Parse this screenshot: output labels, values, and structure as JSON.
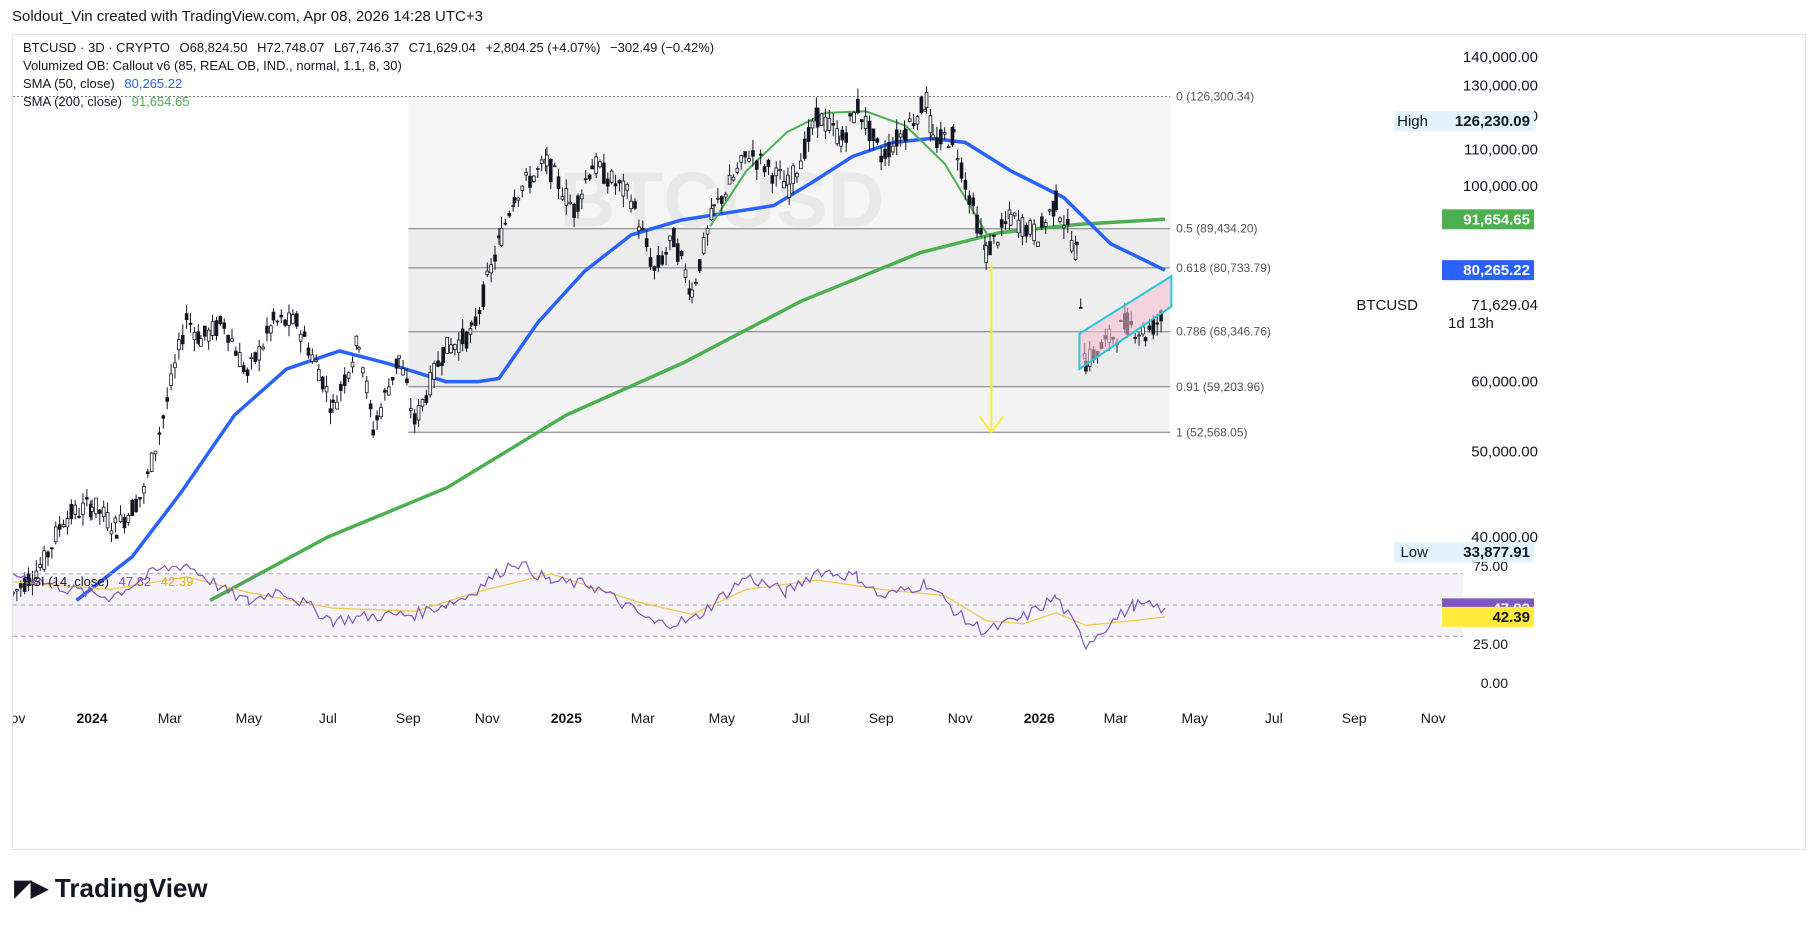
{
  "credit": "Soldout_Vin created with TradingView.com, Apr 08, 2026 14:28 UTC+3",
  "brand": {
    "name": "TradingView",
    "logo_icon": "tradingview-logo-icon"
  },
  "colors": {
    "candle": "#131722",
    "sma50": "#2962ff",
    "sma200": "#4caf50",
    "green_arc": "#4caf50",
    "rsi": "#7e57c2",
    "rsi_ma": "#f2c94c",
    "fib_line": "#787b86",
    "arrow": "#ffeb3b",
    "channel": "#26c6da",
    "channel_fill": "#f8bbd0",
    "badge_high_bg": "#e3f2fd",
    "badge_sma50_bg": "#2962ff",
    "badge_sma200_bg": "#4caf50",
    "badge_rsi_bg": "#7e57c2",
    "badge_rsi_ma_bg": "#ffeb3b"
  },
  "chart_data": {
    "type": "line",
    "symbol": "BTCUSD",
    "timeframe": "3D",
    "market": "CRYPTO",
    "watermark": "BTCUSD",
    "legend": {
      "header": "BTCUSD · 3D · CRYPTO",
      "ohlc": [
        "O68,824.50",
        "H72,748.07",
        "L67,746.37",
        "C71,629.04"
      ],
      "change": "+2,804.25 (+4.07%)",
      "change2": "−302.49 (−0.42%)",
      "ob_indicator": "Volumized OB: Callout v6 (85, REAL OB, IND., normal, 1.1, 8, 30)",
      "sma50_label": "SMA (50, close)",
      "sma50_value": "80,265.22",
      "sma200_label": "SMA (200, close)",
      "sma200_value": "91,654.65"
    },
    "price_axis": {
      "ticks": [
        "140,000.00",
        "130,000.00",
        "120,000.00",
        "110,000.00",
        "100,000.00",
        "60,000.00",
        "50,000.00",
        "40,000.00"
      ],
      "tick_values": [
        140000,
        130000,
        120000,
        110000,
        100000,
        60000,
        50000,
        40000
      ]
    },
    "time_axis": {
      "labels": [
        "Nov",
        "2024",
        "Mar",
        "May",
        "Jul",
        "Sep",
        "Nov",
        "2025",
        "Mar",
        "May",
        "Jul",
        "Sep",
        "Nov",
        "2026",
        "Mar",
        "May",
        "Jul",
        "Sep",
        "Nov"
      ],
      "bold": [
        false,
        true,
        false,
        false,
        false,
        false,
        false,
        true,
        false,
        false,
        false,
        false,
        false,
        true,
        false,
        false,
        false,
        false,
        false
      ],
      "dates": [
        "2023-11-01",
        "2024-01-01",
        "2024-03-01",
        "2024-05-01",
        "2024-07-01",
        "2024-09-01",
        "2024-11-01",
        "2025-01-01",
        "2025-03-01",
        "2025-05-01",
        "2025-07-01",
        "2025-09-01",
        "2025-11-01",
        "2026-01-01",
        "2026-03-01",
        "2026-05-01",
        "2026-07-01",
        "2026-09-01",
        "2026-11-01"
      ]
    },
    "x_range": [
      "2023-11-01",
      "2026-11-24"
    ],
    "y_log": true,
    "badges": {
      "high_label": "High",
      "high_value": "126,230.09",
      "low_label": "Low",
      "low_value": "33,877.91",
      "sma200_value": "91,654.65",
      "sma50_value": "80,265.22",
      "last_symbol": "BTCUSD",
      "last_value": "71,629.04",
      "countdown": "1d 13h"
    },
    "fibonacci": {
      "start": "2024-09-01",
      "end": "2026-04-12",
      "levels": [
        {
          "label": "0 (126,300.34)",
          "price": 126300.34
        },
        {
          "label": "0.5 (89,434.20)",
          "price": 89434.2
        },
        {
          "label": "0.618 (80,733.79)",
          "price": 80733.79
        },
        {
          "label": "0.786 (68,346.76)",
          "price": 68346.76
        },
        {
          "label": "0.91 (59,203.96)",
          "price": 59203.96
        },
        {
          "label": "1 (52,568.05)",
          "price": 52568.05
        }
      ]
    },
    "series": [
      {
        "name": "BTCUSD",
        "points": [
          [
            "2023-11-01",
            34500
          ],
          [
            "2023-11-25",
            37500
          ],
          [
            "2023-12-10",
            42000
          ],
          [
            "2024-01-01",
            43500
          ],
          [
            "2024-01-20",
            41000
          ],
          [
            "2024-02-10",
            45000
          ],
          [
            "2024-02-28",
            57000
          ],
          [
            "2024-03-14",
            71000
          ],
          [
            "2024-03-25",
            67000
          ],
          [
            "2024-04-12",
            70000
          ],
          [
            "2024-04-30",
            61000
          ],
          [
            "2024-05-20",
            70000
          ],
          [
            "2024-06-07",
            70000
          ],
          [
            "2024-06-24",
            62000
          ],
          [
            "2024-07-05",
            56000
          ],
          [
            "2024-07-25",
            67000
          ],
          [
            "2024-08-05",
            53000
          ],
          [
            "2024-08-25",
            64000
          ],
          [
            "2024-09-06",
            54000
          ],
          [
            "2024-09-28",
            65000
          ],
          [
            "2024-10-20",
            68000
          ],
          [
            "2024-11-12",
            88000
          ],
          [
            "2024-11-22",
            98000
          ],
          [
            "2024-12-17",
            106000
          ],
          [
            "2025-01-07",
            94000
          ],
          [
            "2025-01-21",
            106000
          ],
          [
            "2025-02-20",
            97000
          ],
          [
            "2025-03-10",
            80000
          ],
          [
            "2025-03-25",
            87000
          ],
          [
            "2025-04-08",
            76000
          ],
          [
            "2025-04-25",
            94000
          ],
          [
            "2025-05-22",
            109000
          ],
          [
            "2025-06-22",
            100000
          ],
          [
            "2025-07-14",
            120000
          ],
          [
            "2025-08-02",
            113000
          ],
          [
            "2025-08-14",
            123000
          ],
          [
            "2025-09-01",
            108000
          ],
          [
            "2025-09-20",
            116000
          ],
          [
            "2025-10-06",
            125000
          ],
          [
            "2025-10-11",
            112000
          ],
          [
            "2025-10-27",
            114000
          ],
          [
            "2025-11-05",
            101000
          ],
          [
            "2025-11-21",
            84000
          ],
          [
            "2025-12-10",
            92000
          ],
          [
            "2025-12-31",
            88000
          ],
          [
            "2026-01-14",
            96000
          ],
          [
            "2026-01-30",
            84000
          ],
          [
            "2026-02-06",
            63000
          ],
          [
            "2026-02-24",
            67000
          ],
          [
            "2026-03-10",
            70000
          ],
          [
            "2026-03-24",
            68000
          ],
          [
            "2026-04-08",
            71629.04
          ]
        ]
      },
      {
        "name": "SMA (50, close)",
        "points": [
          [
            "2023-12-20",
            33900
          ],
          [
            "2024-02-01",
            38000
          ],
          [
            "2024-03-10",
            45000
          ],
          [
            "2024-04-20",
            55000
          ],
          [
            "2024-05-30",
            62000
          ],
          [
            "2024-07-10",
            65000
          ],
          [
            "2024-08-15",
            63000
          ],
          [
            "2024-09-30",
            60000
          ],
          [
            "2024-10-25",
            60000
          ],
          [
            "2024-11-10",
            60500
          ],
          [
            "2024-12-10",
            70000
          ],
          [
            "2025-01-15",
            80000
          ],
          [
            "2025-02-20",
            88000
          ],
          [
            "2025-03-31",
            91500
          ],
          [
            "2025-05-01",
            93000
          ],
          [
            "2025-06-10",
            95000
          ],
          [
            "2025-07-10",
            101000
          ],
          [
            "2025-08-10",
            108000
          ],
          [
            "2025-09-10",
            112000
          ],
          [
            "2025-10-10",
            113200
          ],
          [
            "2025-11-05",
            112000
          ],
          [
            "2025-12-10",
            104000
          ],
          [
            "2026-01-20",
            97000
          ],
          [
            "2026-02-25",
            86000
          ],
          [
            "2026-04-08",
            80265.22
          ]
        ]
      },
      {
        "name": "SMA (200, close)",
        "points": [
          [
            "2024-04-01",
            33900
          ],
          [
            "2024-07-01",
            40000
          ],
          [
            "2024-10-01",
            45500
          ],
          [
            "2025-01-01",
            55000
          ],
          [
            "2025-04-01",
            63000
          ],
          [
            "2025-07-01",
            74000
          ],
          [
            "2025-10-01",
            84000
          ],
          [
            "2025-12-01",
            88500
          ],
          [
            "2026-02-01",
            90500
          ],
          [
            "2026-04-08",
            91654.65
          ]
        ]
      }
    ],
    "annotations": {
      "arc_points": [
        [
          "2025-04-22",
          90000
        ],
        [
          "2025-05-20",
          104000
        ],
        [
          "2025-06-20",
          115000
        ],
        [
          "2025-07-20",
          121000
        ],
        [
          "2025-08-20",
          121500
        ],
        [
          "2025-09-20",
          117000
        ],
        [
          "2025-10-20",
          106000
        ],
        [
          "2025-11-22",
          88000
        ]
      ],
      "arrow": {
        "date": "2025-11-25",
        "from": 82000,
        "to": 52568.05
      },
      "channel": [
        [
          "2026-02-01",
          68000
        ],
        [
          "2026-04-13",
          79000
        ],
        [
          "2026-04-13",
          73000
        ],
        [
          "2026-02-01",
          62000
        ]
      ]
    },
    "rsi": {
      "label": "RSI (14, close)",
      "value": "47.82",
      "ma_value": "42.39",
      "ticks": [
        "75.00",
        "25.00",
        "0.00"
      ],
      "tick_values": [
        75,
        25,
        0
      ],
      "bands": [
        70,
        50,
        30
      ],
      "points": [
        [
          "2023-11-01",
          70
        ],
        [
          "2023-12-15",
          60
        ],
        [
          "2024-01-15",
          55
        ],
        [
          "2024-02-20",
          72
        ],
        [
          "2024-03-14",
          76
        ],
        [
          "2024-04-15",
          58
        ],
        [
          "2024-05-01",
          52
        ],
        [
          "2024-05-25",
          60
        ],
        [
          "2024-07-05",
          40
        ],
        [
          "2024-08-05",
          43
        ],
        [
          "2024-09-06",
          44
        ],
        [
          "2024-10-15",
          55
        ],
        [
          "2024-11-22",
          78
        ],
        [
          "2024-12-20",
          65
        ],
        [
          "2025-01-20",
          63
        ],
        [
          "2025-02-25",
          45
        ],
        [
          "2025-03-10",
          38
        ],
        [
          "2025-04-08",
          40
        ],
        [
          "2025-05-20",
          68
        ],
        [
          "2025-06-20",
          58
        ],
        [
          "2025-07-14",
          72
        ],
        [
          "2025-08-14",
          68
        ],
        [
          "2025-09-01",
          55
        ],
        [
          "2025-10-06",
          64
        ],
        [
          "2025-11-05",
          40
        ],
        [
          "2025-11-21",
          33
        ],
        [
          "2025-12-20",
          42
        ],
        [
          "2026-01-14",
          55
        ],
        [
          "2026-02-06",
          25
        ],
        [
          "2026-02-24",
          38
        ],
        [
          "2026-03-15",
          50
        ],
        [
          "2026-04-08",
          47.82
        ]
      ],
      "ma_points": [
        [
          "2023-11-01",
          65
        ],
        [
          "2024-01-15",
          60
        ],
        [
          "2024-03-14",
          68
        ],
        [
          "2024-05-01",
          58
        ],
        [
          "2024-07-05",
          48
        ],
        [
          "2024-09-06",
          46
        ],
        [
          "2024-11-01",
          60
        ],
        [
          "2024-12-20",
          70
        ],
        [
          "2025-02-25",
          52
        ],
        [
          "2025-04-08",
          44
        ],
        [
          "2025-05-20",
          60
        ],
        [
          "2025-07-14",
          66
        ],
        [
          "2025-09-01",
          60
        ],
        [
          "2025-10-20",
          56
        ],
        [
          "2025-11-21",
          40
        ],
        [
          "2025-12-20",
          38
        ],
        [
          "2026-01-14",
          45
        ],
        [
          "2026-02-06",
          37
        ],
        [
          "2026-03-15",
          40
        ],
        [
          "2026-04-08",
          42.39
        ]
      ]
    }
  }
}
